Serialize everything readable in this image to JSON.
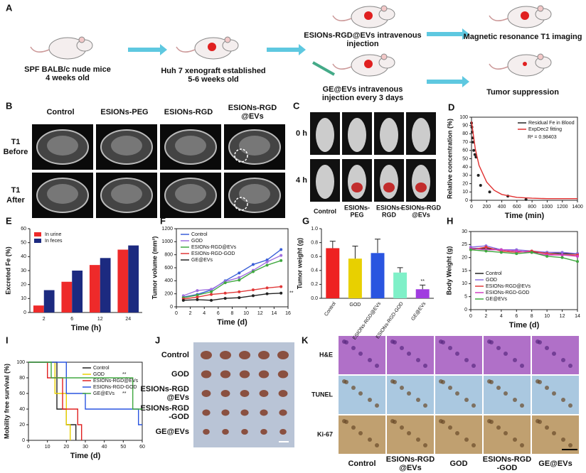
{
  "panels": {
    "A": {
      "letter": "A",
      "steps": [
        [
          "SPF BALB/c nude mice",
          "4 weeks old"
        ],
        [
          "Huh 7 xenograft established",
          "5-6 weeks old"
        ],
        [
          "ESIONs-RGD@EVs intravenous",
          "injection"
        ],
        [
          "GE@EVs intravenous",
          "injection every 3 days"
        ],
        [
          "Magnetic resonance T1 imaging"
        ],
        [
          "Tumor suppression"
        ]
      ]
    },
    "B": {
      "letter": "B",
      "columns": [
        [
          "Control"
        ],
        [
          "ESIONs-PEG"
        ],
        [
          "ESIONs-RGD"
        ],
        [
          "ESIONs-RGD",
          "@EVs"
        ]
      ],
      "rows": [
        [
          "T1",
          "Before"
        ],
        [
          "T1",
          "After"
        ]
      ]
    },
    "C": {
      "letter": "C",
      "rows": [
        "0 h",
        "4 h"
      ],
      "columns": [
        [
          "Control"
        ],
        [
          "ESIONs-",
          "PEG"
        ],
        [
          "ESIONs-",
          "RGD"
        ],
        [
          "ESIONs-RGD",
          "@EVs"
        ]
      ]
    },
    "J": {
      "letter": "J",
      "rows": [
        [
          "Control"
        ],
        [
          "GOD"
        ],
        [
          "ESIONs-RGD",
          "@EVs"
        ],
        [
          "ESIONs-RGD",
          "-GOD"
        ],
        [
          "GE@EVs"
        ]
      ]
    },
    "K": {
      "letter": "K",
      "rows": [
        "H&E",
        "TUNEL",
        "Ki-67"
      ],
      "columns": [
        [
          "Control"
        ],
        [
          "ESIONs-RGD",
          "@EVs"
        ],
        [
          "GOD"
        ],
        [
          "ESIONs-RGD",
          "-GOD"
        ],
        [
          "GE@EVs"
        ]
      ]
    }
  },
  "chart_data": [
    {
      "type": "line",
      "panel": "D",
      "xlabel": "Time (min)",
      "ylabel": "Relative concentration (%)",
      "xlim": [
        0,
        1400
      ],
      "xticks": [
        0,
        200,
        400,
        600,
        800,
        1000,
        1200,
        1400
      ],
      "ylim": [
        0,
        100
      ],
      "yticks": [
        0,
        10,
        20,
        30,
        40,
        50,
        60,
        70,
        80,
        90,
        100
      ],
      "legend": "upper right",
      "frame": true,
      "series": [
        {
          "name": "Residual Fe in Blood",
          "color": "#222222",
          "mode": "markers",
          "x": [
            0,
            5,
            10,
            15,
            20,
            30,
            45,
            60,
            90,
            120,
            240,
            480,
            720
          ],
          "values": [
            93,
            88,
            82,
            75,
            70,
            60,
            55,
            52,
            30,
            18,
            10,
            5,
            1
          ]
        },
        {
          "name": "ExpDec2 fitting",
          "color": "#e03030",
          "mode": "lines",
          "x": [
            0,
            50,
            100,
            200,
            300,
            400,
            600,
            800,
            1000,
            1400
          ],
          "values": [
            95,
            62,
            42,
            22,
            12,
            7,
            3.5,
            2.5,
            2,
            2
          ]
        }
      ],
      "annotations": [
        "R² = 0.98403"
      ]
    },
    {
      "type": "bar",
      "panel": "E",
      "xlabel": "Time (h)",
      "ylabel": "Excreted Fe (%)",
      "categories": [
        "2",
        "6",
        "12",
        "24"
      ],
      "ylim": [
        0,
        60
      ],
      "yticks": [
        0,
        10,
        20,
        30,
        40,
        50,
        60
      ],
      "legend": "upper left",
      "series": [
        {
          "name": "In urine",
          "color": "#ee2a2a",
          "values": [
            5,
            22,
            34,
            45
          ]
        },
        {
          "name": "In feces",
          "color": "#1c2a80",
          "values": [
            16,
            30,
            39,
            48
          ]
        }
      ]
    },
    {
      "type": "line",
      "panel": "F",
      "xlabel": "Time (d)",
      "ylabel": "Tumor volume (mm³)",
      "x": [
        1,
        3,
        5,
        7,
        9,
        11,
        13,
        15
      ],
      "xlim": [
        0,
        16
      ],
      "xticks": [
        0,
        2,
        4,
        6,
        8,
        10,
        12,
        14,
        16
      ],
      "ylim": [
        0,
        1200
      ],
      "yticks": [
        0,
        200,
        400,
        600,
        800,
        1000,
        1200
      ],
      "legend": "upper left",
      "frame": true,
      "marker": true,
      "series": [
        {
          "name": "Control",
          "color": "#3a5fd8",
          "values": [
            150,
            190,
            260,
            400,
            520,
            650,
            720,
            880
          ]
        },
        {
          "name": "GOD",
          "color": "#a070e0",
          "values": [
            170,
            250,
            270,
            390,
            450,
            560,
            690,
            790
          ]
        },
        {
          "name": "ESIONs-RGD@EVs",
          "color": "#40a840",
          "values": [
            140,
            180,
            230,
            370,
            410,
            540,
            640,
            710
          ]
        },
        {
          "name": "ESIONs-RGD-GOD",
          "color": "#e03838",
          "values": [
            120,
            150,
            190,
            210,
            230,
            260,
            290,
            310
          ]
        },
        {
          "name": "GE@EVs",
          "color": "#222222",
          "values": [
            100,
            110,
            100,
            130,
            140,
            170,
            200,
            210
          ]
        }
      ],
      "annotations": [
        "**"
      ]
    },
    {
      "type": "bar",
      "panel": "G",
      "ylabel": "Tumor weight (g)",
      "categories": [
        "Control",
        "GOD",
        "ESIONs-RGD@EVs",
        "ESIONs-RGD-GOD",
        "GE@EVs"
      ],
      "values": [
        0.72,
        0.57,
        0.65,
        0.37,
        0.13
      ],
      "errors": [
        0.1,
        0.18,
        0.2,
        0.07,
        0.06
      ],
      "colors": [
        "#ee2222",
        "#e8d000",
        "#2a55e0",
        "#7ff0c8",
        "#a03ce0"
      ],
      "ylim": [
        0,
        1.0
      ],
      "yticks": [
        {
          "value": 0,
          "label": "0.0"
        },
        {
          "value": 0.2,
          "label": "0.2"
        },
        {
          "value": 0.4,
          "label": "0.4"
        },
        {
          "value": 0.6,
          "label": "0.6"
        },
        {
          "value": 0.8,
          "label": "0.8"
        },
        {
          "value": 1.0,
          "label": "1.0"
        }
      ],
      "annotations": [
        "**"
      ]
    },
    {
      "type": "line",
      "panel": "H",
      "xlabel": "Time (d)",
      "ylabel": "Body Weight (g)",
      "x": [
        0,
        2,
        4,
        6,
        8,
        10,
        12,
        14
      ],
      "xlim": [
        0,
        14
      ],
      "xticks": [
        0,
        2,
        4,
        6,
        8,
        10,
        12,
        14
      ],
      "ylim": [
        0,
        30
      ],
      "yticks": [
        0,
        5,
        10,
        15,
        20,
        25,
        30
      ],
      "legend": "lower left",
      "frame": true,
      "marker": true,
      "series": [
        {
          "name": "Control",
          "color": "#222222",
          "values": [
            23.5,
            23.5,
            23,
            22.5,
            22,
            22,
            21.5,
            21.5
          ]
        },
        {
          "name": "GOD",
          "color": "#8a6ae0",
          "values": [
            24,
            24.5,
            23,
            23,
            22.5,
            22,
            22,
            21.5
          ]
        },
        {
          "name": "ESIONs-RGD@EVs",
          "color": "#e03838",
          "values": [
            23,
            24,
            22.5,
            22,
            22.5,
            21.5,
            21,
            21
          ]
        },
        {
          "name": "ESIONs-RGD-GOD",
          "color": "#d040c0",
          "values": [
            23.5,
            23,
            23,
            22.5,
            22,
            21,
            21,
            20.5
          ]
        },
        {
          "name": "GE@EVs",
          "color": "#40a840",
          "values": [
            23,
            22.5,
            22,
            21.5,
            22,
            20.5,
            20,
            18.5
          ]
        }
      ]
    },
    {
      "type": "line",
      "panel": "I",
      "xlabel": "Time (d)",
      "ylabel": "Mobility free survival (%)",
      "xlim": [
        0,
        60
      ],
      "xticks": [
        0,
        10,
        20,
        30,
        40,
        50,
        60
      ],
      "ylim": [
        0,
        100
      ],
      "yticks": [
        0,
        20,
        40,
        60,
        80,
        100
      ],
      "legend": "upper right",
      "frame": true,
      "series": [
        {
          "name": "Control",
          "color": "#222222",
          "x": [
            0,
            15,
            15,
            20,
            20,
            25,
            25
          ],
          "values": [
            100,
            100,
            40,
            40,
            20,
            20,
            0
          ]
        },
        {
          "name": "GOD",
          "color": "#e8d000",
          "x": [
            0,
            14,
            14,
            20,
            20,
            22,
            22
          ],
          "values": [
            100,
            100,
            60,
            60,
            20,
            20,
            0
          ]
        },
        {
          "name": "ESIONs-RGD@EVs",
          "color": "#e02020",
          "x": [
            0,
            10,
            10,
            18,
            18,
            26,
            26,
            28,
            28
          ],
          "values": [
            100,
            100,
            80,
            80,
            40,
            40,
            20,
            20,
            0
          ]
        },
        {
          "name": "ESIONs-RGD-GOD",
          "color": "#2a55e0",
          "x": [
            0,
            20,
            20,
            30,
            30,
            58,
            58,
            60
          ],
          "values": [
            100,
            100,
            60,
            60,
            40,
            40,
            20,
            20
          ]
        },
        {
          "name": "GE@EVs",
          "color": "#40a840",
          "x": [
            0,
            12,
            12,
            55,
            55,
            60
          ],
          "values": [
            100,
            100,
            80,
            80,
            40,
            40
          ]
        }
      ],
      "annotations": [
        "**",
        "**"
      ]
    }
  ]
}
